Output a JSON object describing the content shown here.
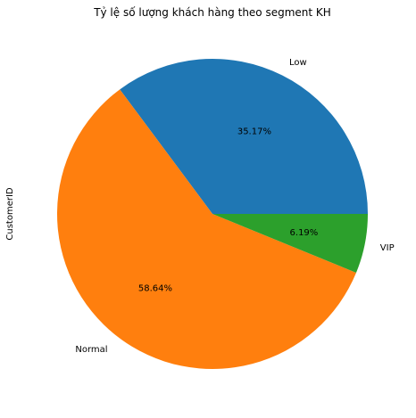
{
  "chart_data": {
    "type": "pie",
    "title": "Tỷ lệ số lượng khách hàng theo segment KH",
    "ylabel": "CustomerID",
    "slices": [
      {
        "label": "Low",
        "value": 35.17,
        "pct_label": "35.17%",
        "color": "#1f77b4"
      },
      {
        "label": "Normal",
        "value": 58.64,
        "pct_label": "58.64%",
        "color": "#ff7f0e"
      },
      {
        "label": "VIP",
        "value": 6.19,
        "pct_label": "6.19%",
        "color": "#2ca02c"
      }
    ],
    "start_angle": 0,
    "direction": "counterclockwise",
    "legend": "none"
  }
}
